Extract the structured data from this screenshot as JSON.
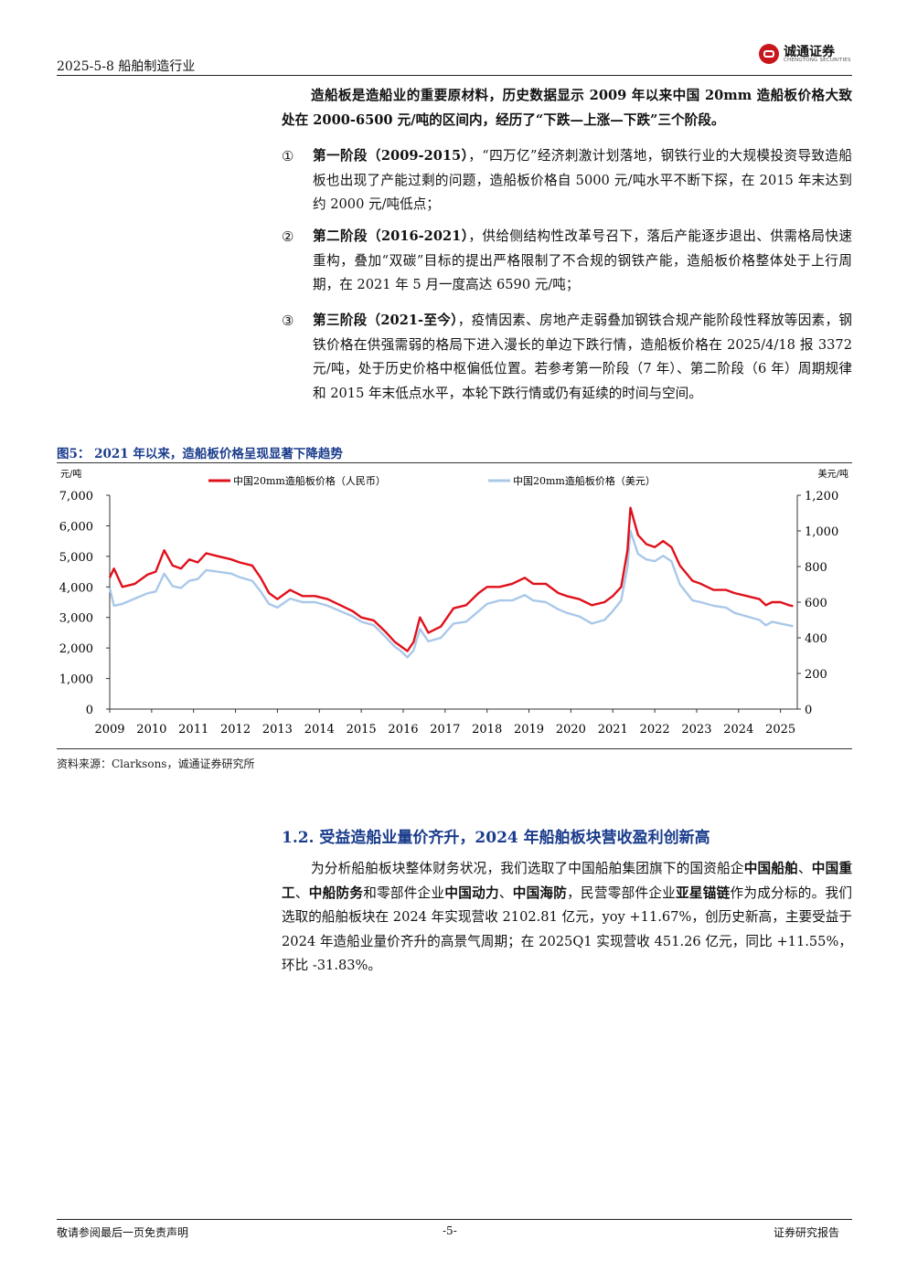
{
  "header": {
    "left": "2025-5-8  船舶制造行业",
    "logo_name": "诚通证券",
    "logo_en": "CHENGTONG SECURITIES"
  },
  "intro": {
    "text": "造船板是造船业的重要原材料，历史数据显示 2009 年以来中国 20mm 造船板价格大致处在 2000-6500 元/吨的区间内，经历了“下跌—上涨—下跌”三个阶段。"
  },
  "stages": [
    {
      "num": "①",
      "title": "第一阶段（2009-2015）",
      "body": "，“四万亿”经济刺激计划落地，钢铁行业的大规模投资导致造船板也出现了产能过剩的问题，造船板价格自 5000 元/吨水平不断下探，在 2015 年末达到约 2000 元/吨低点；"
    },
    {
      "num": "②",
      "title": "第二阶段（2016-2021）",
      "body": "，供给侧结构性改革号召下，落后产能逐步退出、供需格局快速重构，叠加“双碳”目标的提出严格限制了不合规的钢铁产能，造船板价格整体处于上行周期，在 2021 年 5 月一度高达 6590 元/吨；"
    },
    {
      "num": "③",
      "title": "第三阶段（2021-至今）",
      "body": "，疫情因素、房地产走弱叠加钢铁合规产能阶段性释放等因素，钢铁价格在供强需弱的格局下进入漫长的单边下跌行情，造船板价格在 2025/4/18 报 3372 元/吨，处于历史价格中枢偏低位置。若参考第一阶段（7 年）、第二阶段（6 年）周期规律和 2015 年末低点水平，本轮下跌行情或仍有延续的时间与空间。"
    }
  ],
  "figure": {
    "title": "图5：  2021 年以来，造船板价格呈现显著下降趋势",
    "source": "资料来源：Clarksons，诚通证券研究所"
  },
  "chart_data": {
    "type": "line",
    "left_unit": "元/吨",
    "right_unit": "美元/吨",
    "ylim_left": [
      0,
      7000
    ],
    "ylim_right": [
      0,
      1200
    ],
    "yticks_left": [
      "0",
      "1,000",
      "2,000",
      "3,000",
      "4,000",
      "5,000",
      "6,000",
      "7,000"
    ],
    "yticks_right": [
      "0",
      "200",
      "400",
      "600",
      "800",
      "1,000",
      "1,200"
    ],
    "x_ticks": [
      "2009",
      "2010",
      "2011",
      "2012",
      "2013",
      "2014",
      "2015",
      "2016",
      "2017",
      "2018",
      "2019",
      "2020",
      "2021",
      "2022",
      "2023",
      "2024",
      "2025"
    ],
    "x_range": [
      2009.0,
      2025.4
    ],
    "grid": false,
    "legend": "top",
    "series": [
      {
        "name": "中国20mm造船板价格（人民币）",
        "axis": "left",
        "color": "#e0101a",
        "x": [
          2009.0,
          2009.1,
          2009.3,
          2009.6,
          2009.9,
          2010.1,
          2010.3,
          2010.5,
          2010.7,
          2010.9,
          2011.1,
          2011.3,
          2011.6,
          2011.9,
          2012.1,
          2012.4,
          2012.6,
          2012.8,
          2013.0,
          2013.3,
          2013.6,
          2013.9,
          2014.2,
          2014.5,
          2014.8,
          2015.0,
          2015.3,
          2015.6,
          2015.8,
          2015.95,
          2016.1,
          2016.25,
          2016.4,
          2016.6,
          2016.9,
          2017.2,
          2017.5,
          2017.8,
          2018.0,
          2018.3,
          2018.6,
          2018.9,
          2019.1,
          2019.4,
          2019.7,
          2019.9,
          2020.2,
          2020.5,
          2020.8,
          2021.0,
          2021.2,
          2021.35,
          2021.42,
          2021.6,
          2021.8,
          2022.0,
          2022.2,
          2022.4,
          2022.6,
          2022.9,
          2023.1,
          2023.4,
          2023.7,
          2023.9,
          2024.2,
          2024.5,
          2024.65,
          2024.8,
          2025.0,
          2025.2,
          2025.3
        ],
        "y": [
          4300,
          4600,
          4000,
          4100,
          4400,
          4500,
          5200,
          4700,
          4600,
          4900,
          4800,
          5100,
          5000,
          4900,
          4800,
          4700,
          4300,
          3800,
          3600,
          3900,
          3700,
          3700,
          3600,
          3400,
          3200,
          3000,
          2900,
          2500,
          2200,
          2050,
          1900,
          2200,
          3000,
          2500,
          2700,
          3300,
          3400,
          3800,
          4000,
          4000,
          4100,
          4300,
          4100,
          4100,
          3800,
          3700,
          3600,
          3400,
          3500,
          3700,
          4000,
          5200,
          6590,
          5700,
          5400,
          5300,
          5500,
          5300,
          4700,
          4200,
          4100,
          3900,
          3900,
          3800,
          3700,
          3600,
          3400,
          3500,
          3500,
          3400,
          3372
        ]
      },
      {
        "name": "中国20mm造船板价格（美元）",
        "axis": "right",
        "color": "#a9c8e8",
        "x": [
          2009.0,
          2009.1,
          2009.3,
          2009.6,
          2009.9,
          2010.1,
          2010.3,
          2010.5,
          2010.7,
          2010.9,
          2011.1,
          2011.3,
          2011.6,
          2011.9,
          2012.1,
          2012.4,
          2012.6,
          2012.8,
          2013.0,
          2013.3,
          2013.6,
          2013.9,
          2014.2,
          2014.5,
          2014.8,
          2015.0,
          2015.3,
          2015.6,
          2015.8,
          2015.95,
          2016.1,
          2016.25,
          2016.4,
          2016.6,
          2016.9,
          2017.2,
          2017.5,
          2017.8,
          2018.0,
          2018.3,
          2018.6,
          2018.9,
          2019.1,
          2019.4,
          2019.7,
          2019.9,
          2020.2,
          2020.5,
          2020.8,
          2021.0,
          2021.2,
          2021.35,
          2021.42,
          2021.6,
          2021.8,
          2022.0,
          2022.2,
          2022.4,
          2022.6,
          2022.9,
          2023.1,
          2023.4,
          2023.7,
          2023.9,
          2024.2,
          2024.5,
          2024.65,
          2024.8,
          2025.0,
          2025.2,
          2025.3
        ],
        "y": [
          680,
          580,
          590,
          620,
          650,
          660,
          760,
          690,
          680,
          720,
          730,
          780,
          770,
          760,
          740,
          720,
          660,
          590,
          570,
          620,
          600,
          600,
          580,
          550,
          520,
          490,
          470,
          400,
          350,
          325,
          290,
          330,
          450,
          380,
          400,
          480,
          490,
          550,
          590,
          610,
          610,
          640,
          610,
          600,
          560,
          540,
          520,
          480,
          500,
          550,
          610,
          800,
          1000,
          870,
          840,
          830,
          860,
          830,
          700,
          610,
          600,
          580,
          570,
          540,
          520,
          500,
          470,
          490,
          480,
          470,
          465
        ]
      }
    ]
  },
  "section": {
    "title": "1.2.  受益造船业量价齐升，2024 年船舶板块营收盈利创新高"
  },
  "body": {
    "p1": "为分析船舶板块整体财务状况，我们选取了中国船舶集团旗下的国资船企",
    "c1": "中国船舶",
    "s1": "、",
    "c2": "中国重工",
    "s2": "、",
    "c3": "中船防务",
    "p2": "和零部件企业",
    "c4": "中国动力",
    "s3": "、",
    "c5": "中国海防",
    "p3": "，民营零部件企业",
    "c6": "亚星锚链",
    "p4": "作为成分标的。我们选取的船舶板块在 2024 年实现营收 2102.81 亿元，yoy +11.67%，创历史新高，主要受益于 2024 年造船业量价齐升的高景气周期；在 2025Q1 实现营收 451.26 亿元，同比 +11.55%，环比 -31.83%。"
  },
  "footer": {
    "left": "敬请参阅最后一页免责声明",
    "center": "-5-",
    "right": "证券研究报告"
  }
}
